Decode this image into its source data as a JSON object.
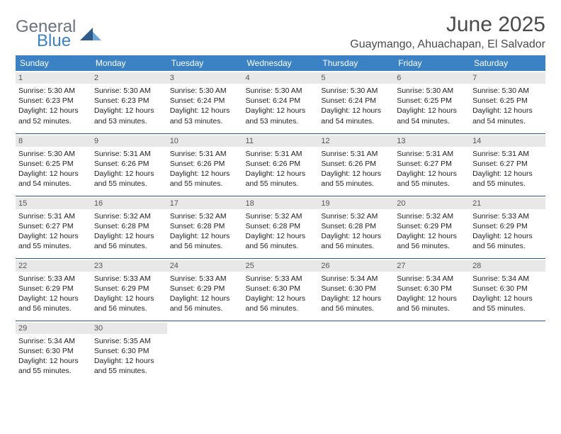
{
  "logo": {
    "main": "General",
    "sub": "Blue",
    "icon_color": "#2f5b8a"
  },
  "title": "June 2025",
  "location": "Guaymango, Ahuachapan, El Salvador",
  "header_bg": "#3b82c4",
  "border_color": "#2f5b8a",
  "daynum_bg": "#e8e8e8",
  "day_headers": [
    "Sunday",
    "Monday",
    "Tuesday",
    "Wednesday",
    "Thursday",
    "Friday",
    "Saturday"
  ],
  "weeks": [
    [
      {
        "num": "1",
        "sunrise": "5:30 AM",
        "sunset": "6:23 PM",
        "daylight": "12 hours and 52 minutes."
      },
      {
        "num": "2",
        "sunrise": "5:30 AM",
        "sunset": "6:23 PM",
        "daylight": "12 hours and 53 minutes."
      },
      {
        "num": "3",
        "sunrise": "5:30 AM",
        "sunset": "6:24 PM",
        "daylight": "12 hours and 53 minutes."
      },
      {
        "num": "4",
        "sunrise": "5:30 AM",
        "sunset": "6:24 PM",
        "daylight": "12 hours and 53 minutes."
      },
      {
        "num": "5",
        "sunrise": "5:30 AM",
        "sunset": "6:24 PM",
        "daylight": "12 hours and 54 minutes."
      },
      {
        "num": "6",
        "sunrise": "5:30 AM",
        "sunset": "6:25 PM",
        "daylight": "12 hours and 54 minutes."
      },
      {
        "num": "7",
        "sunrise": "5:30 AM",
        "sunset": "6:25 PM",
        "daylight": "12 hours and 54 minutes."
      }
    ],
    [
      {
        "num": "8",
        "sunrise": "5:30 AM",
        "sunset": "6:25 PM",
        "daylight": "12 hours and 54 minutes."
      },
      {
        "num": "9",
        "sunrise": "5:31 AM",
        "sunset": "6:26 PM",
        "daylight": "12 hours and 55 minutes."
      },
      {
        "num": "10",
        "sunrise": "5:31 AM",
        "sunset": "6:26 PM",
        "daylight": "12 hours and 55 minutes."
      },
      {
        "num": "11",
        "sunrise": "5:31 AM",
        "sunset": "6:26 PM",
        "daylight": "12 hours and 55 minutes."
      },
      {
        "num": "12",
        "sunrise": "5:31 AM",
        "sunset": "6:26 PM",
        "daylight": "12 hours and 55 minutes."
      },
      {
        "num": "13",
        "sunrise": "5:31 AM",
        "sunset": "6:27 PM",
        "daylight": "12 hours and 55 minutes."
      },
      {
        "num": "14",
        "sunrise": "5:31 AM",
        "sunset": "6:27 PM",
        "daylight": "12 hours and 55 minutes."
      }
    ],
    [
      {
        "num": "15",
        "sunrise": "5:31 AM",
        "sunset": "6:27 PM",
        "daylight": "12 hours and 55 minutes."
      },
      {
        "num": "16",
        "sunrise": "5:32 AM",
        "sunset": "6:28 PM",
        "daylight": "12 hours and 56 minutes."
      },
      {
        "num": "17",
        "sunrise": "5:32 AM",
        "sunset": "6:28 PM",
        "daylight": "12 hours and 56 minutes."
      },
      {
        "num": "18",
        "sunrise": "5:32 AM",
        "sunset": "6:28 PM",
        "daylight": "12 hours and 56 minutes."
      },
      {
        "num": "19",
        "sunrise": "5:32 AM",
        "sunset": "6:28 PM",
        "daylight": "12 hours and 56 minutes."
      },
      {
        "num": "20",
        "sunrise": "5:32 AM",
        "sunset": "6:29 PM",
        "daylight": "12 hours and 56 minutes."
      },
      {
        "num": "21",
        "sunrise": "5:33 AM",
        "sunset": "6:29 PM",
        "daylight": "12 hours and 56 minutes."
      }
    ],
    [
      {
        "num": "22",
        "sunrise": "5:33 AM",
        "sunset": "6:29 PM",
        "daylight": "12 hours and 56 minutes."
      },
      {
        "num": "23",
        "sunrise": "5:33 AM",
        "sunset": "6:29 PM",
        "daylight": "12 hours and 56 minutes."
      },
      {
        "num": "24",
        "sunrise": "5:33 AM",
        "sunset": "6:29 PM",
        "daylight": "12 hours and 56 minutes."
      },
      {
        "num": "25",
        "sunrise": "5:33 AM",
        "sunset": "6:30 PM",
        "daylight": "12 hours and 56 minutes."
      },
      {
        "num": "26",
        "sunrise": "5:34 AM",
        "sunset": "6:30 PM",
        "daylight": "12 hours and 56 minutes."
      },
      {
        "num": "27",
        "sunrise": "5:34 AM",
        "sunset": "6:30 PM",
        "daylight": "12 hours and 56 minutes."
      },
      {
        "num": "28",
        "sunrise": "5:34 AM",
        "sunset": "6:30 PM",
        "daylight": "12 hours and 55 minutes."
      }
    ],
    [
      {
        "num": "29",
        "sunrise": "5:34 AM",
        "sunset": "6:30 PM",
        "daylight": "12 hours and 55 minutes."
      },
      {
        "num": "30",
        "sunrise": "5:35 AM",
        "sunset": "6:30 PM",
        "daylight": "12 hours and 55 minutes."
      },
      null,
      null,
      null,
      null,
      null
    ]
  ],
  "labels": {
    "sunrise": "Sunrise: ",
    "sunset": "Sunset: ",
    "daylight": "Daylight: "
  }
}
